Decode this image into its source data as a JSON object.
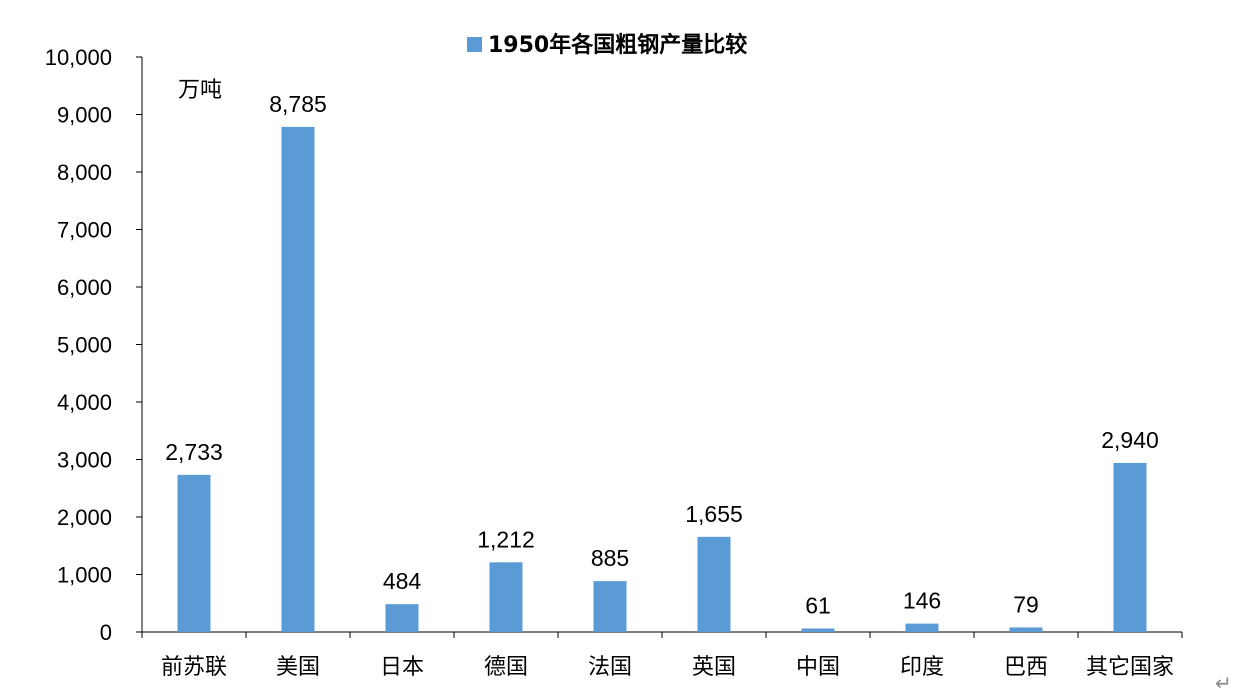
{
  "chart_data": {
    "type": "bar",
    "title": "",
    "xlabel": "",
    "ylabel": "",
    "unit": "万吨",
    "categories": [
      "前苏联",
      "美国",
      "日本",
      "德国",
      "法国",
      "英国",
      "中国",
      "印度",
      "巴西",
      "其它国家"
    ],
    "series": [
      {
        "name": "1950年各国粗钢产量比较",
        "values": [
          2733,
          8785,
          484,
          1212,
          885,
          1655,
          61,
          146,
          79,
          2940
        ],
        "labels": [
          "2,733",
          "8,785",
          "484",
          "1,212",
          "885",
          "1,655",
          "61",
          "146",
          "79",
          "2,940"
        ],
        "color": "#5B9BD5"
      }
    ],
    "ylim": [
      0,
      10000
    ],
    "yticks": [
      0,
      1000,
      2000,
      3000,
      4000,
      5000,
      6000,
      7000,
      8000,
      9000,
      10000
    ],
    "ytick_labels": [
      "0",
      "1,000",
      "2,000",
      "3,000",
      "4,000",
      "5,000",
      "6,000",
      "7,000",
      "8,000",
      "9,000",
      "10,000"
    ],
    "legend_position": "top-center",
    "grid": false
  },
  "trailing_mark": "↵"
}
